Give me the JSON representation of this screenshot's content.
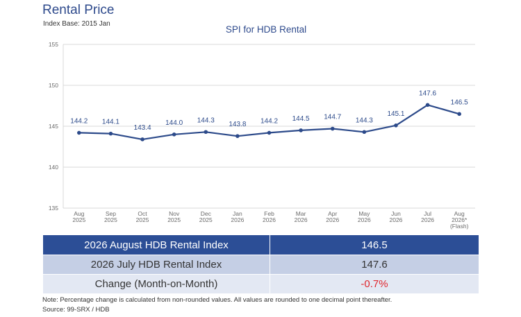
{
  "header": {
    "title": "Rental Price",
    "index_base": "Index Base: 2015 Jan"
  },
  "chart_data": {
    "type": "line",
    "title": "SPI for HDB Rental",
    "xlabel": "",
    "ylabel": "",
    "ylim": [
      135,
      155
    ],
    "yticks": [
      "135",
      "140",
      "145",
      "150",
      "155"
    ],
    "grid": true,
    "categories": [
      [
        "Aug",
        "2025"
      ],
      [
        "Sep",
        "2025"
      ],
      [
        "Oct",
        "2025"
      ],
      [
        "Nov",
        "2025"
      ],
      [
        "Dec",
        "2025"
      ],
      [
        "Jan",
        "2026"
      ],
      [
        "Feb",
        "2026"
      ],
      [
        "Mar",
        "2026"
      ],
      [
        "Apr",
        "2026"
      ],
      [
        "May",
        "2026"
      ],
      [
        "Jun",
        "2026"
      ],
      [
        "Jul",
        "2026"
      ],
      [
        "Aug",
        "2026*",
        "(Flash)"
      ]
    ],
    "series": [
      {
        "values": [
          144.2,
          144.1,
          143.4,
          144.0,
          144.3,
          143.8,
          144.2,
          144.5,
          144.7,
          144.3,
          145.1,
          147.6,
          146.5
        ],
        "labels": [
          "144.2",
          "144.1",
          "143.4",
          "144.0",
          "144.3",
          "143.8",
          "144.2",
          "144.5",
          "144.7",
          "144.3",
          "145.1",
          "147.6",
          "146.5"
        ]
      }
    ],
    "colors": {
      "line": "#2c4a8a",
      "grid": "#d9d9d9",
      "axis_text": "#6a6a6a",
      "label_text": "#2c4a8a"
    }
  },
  "summary": {
    "rows": [
      {
        "label": "2026 August HDB Rental Index",
        "value": "146.5"
      },
      {
        "label": "2026 July HDB Rental Index",
        "value": "147.6"
      },
      {
        "label": "Change (Month-on-Month)",
        "value": "-0.7%"
      }
    ]
  },
  "footer": {
    "note": "Note: Percentage change is calculated from non-rounded values.  All values are rounded to one decimal point thereafter.",
    "source": "Source: 99-SRX / HDB"
  }
}
